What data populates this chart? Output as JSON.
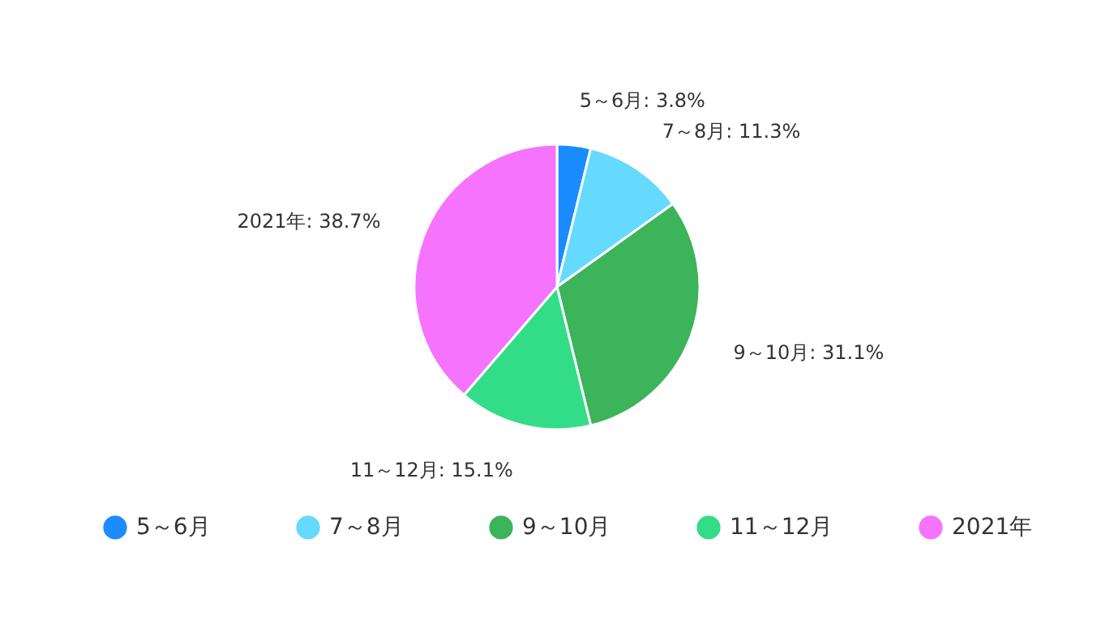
{
  "chart_data": {
    "type": "pie",
    "categories": [
      "5～6月",
      "7～8月",
      "9～10月",
      "11～12月",
      "2021年"
    ],
    "values": [
      3.8,
      11.3,
      31.1,
      15.1,
      38.7
    ],
    "colors": [
      "#1a8cff",
      "#66d9ff",
      "#3cb45a",
      "#33dd88",
      "#f573ff"
    ],
    "value_labels": [
      "5～6月: 3.8%",
      "7～8月: 11.3%",
      "9～10月: 31.1%",
      "11～12月: 15.1%",
      "2021年: 38.7%"
    ],
    "legend": "bottom"
  }
}
